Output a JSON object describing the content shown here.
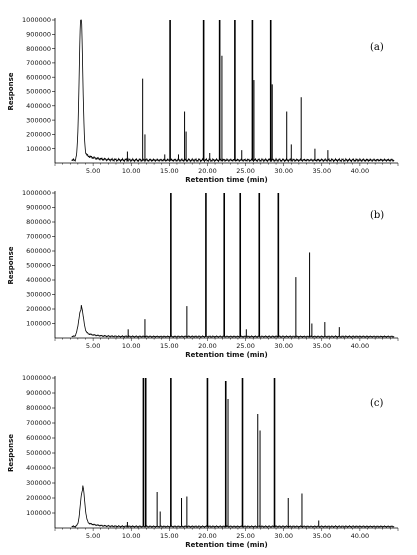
{
  "chart_data": [
    {
      "type": "line",
      "panel_label": "(a)",
      "xlabel": "Retention time (min)",
      "ylabel": "Response",
      "xlim": [
        0,
        45
      ],
      "ylim": [
        0,
        1000000
      ],
      "x_ticks": [
        "5.00",
        "10.00",
        "15.00",
        "20.00",
        "25.00",
        "30.00",
        "35.00",
        "40.00"
      ],
      "y_ticks": [
        "100000",
        "200000",
        "300000",
        "400000",
        "500000",
        "600000",
        "700000",
        "800000",
        "900000",
        "1000000"
      ],
      "solvent_peak": {
        "x": 3.4,
        "height": 1000000,
        "width": 0.45,
        "tail": 60000
      },
      "baseline": 20000,
      "peaks": [
        {
          "x": 9.5,
          "y": 80000
        },
        {
          "x": 11.5,
          "y": 590000
        },
        {
          "x": 11.8,
          "y": 200000
        },
        {
          "x": 14.4,
          "y": 60000
        },
        {
          "x": 15.1,
          "y": 1000000
        },
        {
          "x": 16.2,
          "y": 60000
        },
        {
          "x": 17.0,
          "y": 360000
        },
        {
          "x": 17.2,
          "y": 220000
        },
        {
          "x": 19.5,
          "y": 1000000
        },
        {
          "x": 20.3,
          "y": 70000
        },
        {
          "x": 21.6,
          "y": 1000000
        },
        {
          "x": 21.9,
          "y": 750000
        },
        {
          "x": 23.6,
          "y": 1000000
        },
        {
          "x": 24.5,
          "y": 90000
        },
        {
          "x": 25.9,
          "y": 1000000
        },
        {
          "x": 26.1,
          "y": 580000
        },
        {
          "x": 28.3,
          "y": 1000000
        },
        {
          "x": 28.5,
          "y": 550000
        },
        {
          "x": 30.4,
          "y": 360000
        },
        {
          "x": 31.0,
          "y": 130000
        },
        {
          "x": 32.3,
          "y": 460000
        },
        {
          "x": 34.1,
          "y": 100000
        },
        {
          "x": 35.8,
          "y": 90000
        }
      ]
    },
    {
      "type": "line",
      "panel_label": "(b)",
      "xlabel": "Retention time (min)",
      "ylabel": "Response",
      "xlim": [
        0,
        45
      ],
      "ylim": [
        0,
        1000000
      ],
      "x_ticks": [
        "5.00",
        "10.00",
        "15.00",
        "20.00",
        "25.00",
        "30.00",
        "35.00",
        "40.00"
      ],
      "y_ticks": [
        "100000",
        "200000",
        "300000",
        "400000",
        "500000",
        "600000",
        "700000",
        "800000",
        "900000",
        "1000000"
      ],
      "solvent_peak": {
        "x": 3.4,
        "height": 180000,
        "width": 0.6,
        "tail": 40000
      },
      "baseline": 10000,
      "peaks": [
        {
          "x": 9.6,
          "y": 60000
        },
        {
          "x": 11.8,
          "y": 130000
        },
        {
          "x": 15.2,
          "y": 1000000
        },
        {
          "x": 17.3,
          "y": 220000
        },
        {
          "x": 19.8,
          "y": 1000000
        },
        {
          "x": 22.2,
          "y": 1000000
        },
        {
          "x": 24.3,
          "y": 1000000
        },
        {
          "x": 25.1,
          "y": 60000
        },
        {
          "x": 26.8,
          "y": 1000000
        },
        {
          "x": 29.3,
          "y": 1000000
        },
        {
          "x": 31.6,
          "y": 420000
        },
        {
          "x": 33.4,
          "y": 590000
        },
        {
          "x": 33.7,
          "y": 100000
        },
        {
          "x": 35.4,
          "y": 110000
        },
        {
          "x": 37.3,
          "y": 75000
        }
      ]
    },
    {
      "type": "line",
      "panel_label": "(c)",
      "xlabel": "Retention time (min)",
      "ylabel": "Response",
      "xlim": [
        0,
        45
      ],
      "ylim": [
        0,
        1000000
      ],
      "x_ticks": [
        "5.00",
        "10.00",
        "15.00",
        "20.00",
        "25.00",
        "30.00",
        "35.00",
        "40.00"
      ],
      "y_ticks": [
        "100000",
        "200000",
        "300000",
        "400000",
        "500000",
        "600000",
        "700000",
        "800000",
        "900000",
        "1000000"
      ],
      "solvent_peak": {
        "x": 3.6,
        "height": 240000,
        "width": 0.55,
        "tail": 40000
      },
      "baseline": 10000,
      "peaks": [
        {
          "x": 9.5,
          "y": 40000
        },
        {
          "x": 11.6,
          "y": 1000000
        },
        {
          "x": 11.9,
          "y": 1000000
        },
        {
          "x": 13.4,
          "y": 240000
        },
        {
          "x": 13.8,
          "y": 110000
        },
        {
          "x": 15.2,
          "y": 1000000
        },
        {
          "x": 16.6,
          "y": 200000
        },
        {
          "x": 17.3,
          "y": 210000
        },
        {
          "x": 20.0,
          "y": 1000000
        },
        {
          "x": 22.4,
          "y": 980000
        },
        {
          "x": 22.7,
          "y": 860000
        },
        {
          "x": 24.6,
          "y": 1000000
        },
        {
          "x": 26.6,
          "y": 760000
        },
        {
          "x": 26.9,
          "y": 650000
        },
        {
          "x": 28.8,
          "y": 1000000
        },
        {
          "x": 30.6,
          "y": 200000
        },
        {
          "x": 32.4,
          "y": 230000
        },
        {
          "x": 34.6,
          "y": 50000
        }
      ]
    }
  ]
}
